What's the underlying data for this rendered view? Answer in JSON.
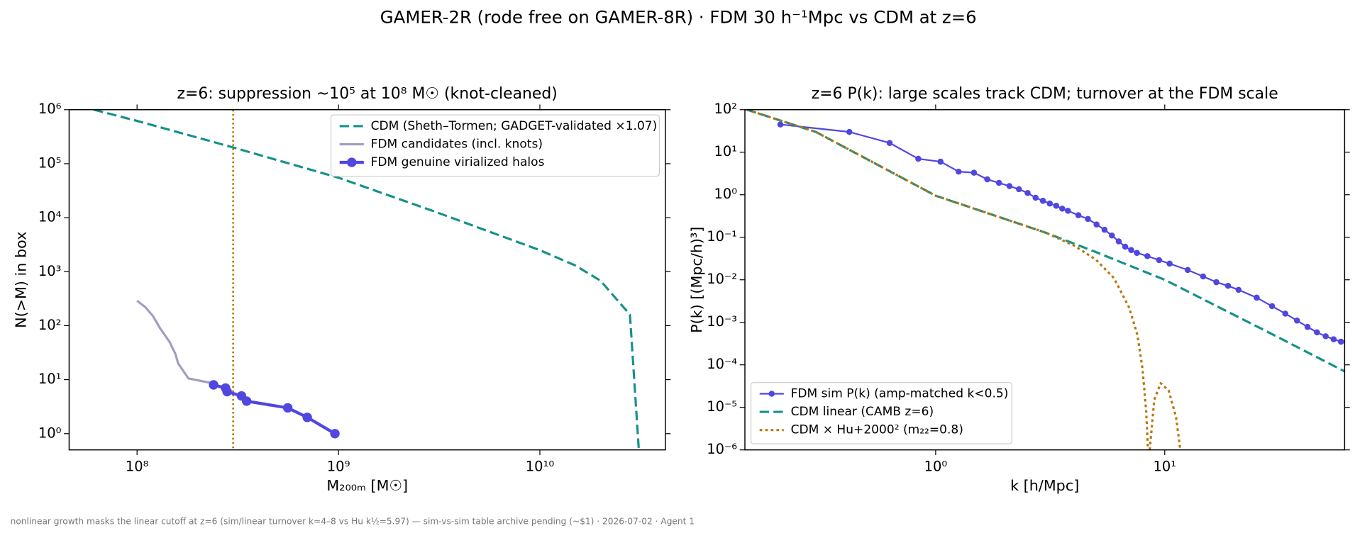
{
  "title": "GAMER-2R (rode free on GAMER-8R) · FDM 30 h⁻¹Mpc vs CDM at z=6",
  "footer": "nonlinear growth masks the linear cutoff at z=6 (sim/linear turnover k≈4–8 vs Hu k½=5.97) — sim-vs-sim table archive pending (~$1) · 2026-07-02 · Agent 1",
  "chart_data": [
    {
      "type": "line",
      "title": "z=6: suppression ~10⁵ at 10⁸ M☉ (knot-cleaned)",
      "xlabel": "M₂₀₀ₘ [M☉]",
      "ylabel": "N(>M) in box",
      "xscale": "log",
      "yscale": "log",
      "xlim": [
        46000000.0,
        42000000000.0
      ],
      "ylim": [
        0.5,
        1000000.0
      ],
      "xticks": [
        {
          "value": 100000000.0,
          "label": "10⁸"
        },
        {
          "value": 1000000000.0,
          "label": "10⁹"
        },
        {
          "value": 10000000000.0,
          "label": "10¹⁰"
        }
      ],
      "yticks": [
        {
          "value": 1,
          "label": "10⁰"
        },
        {
          "value": 10,
          "label": "10¹"
        },
        {
          "value": 100,
          "label": "10²"
        },
        {
          "value": 1000,
          "label": "10³"
        },
        {
          "value": 10000,
          "label": "10⁴"
        },
        {
          "value": 100000,
          "label": "10⁵"
        },
        {
          "value": 1000000,
          "label": "10⁶"
        }
      ],
      "legend": "upper right",
      "vline": {
        "x": 300000000.0,
        "color": "#b8760a"
      },
      "series": [
        {
          "name": "CDM (Sheth–Tormen; GADGET-validated ×1.07)",
          "color": "#15918a",
          "linestyle": "dashed",
          "marker": false,
          "x": [
            61000000.0,
            100000000.0,
            300000000.0,
            1000000000.0,
            3000000000.0,
            10000000000.0,
            15000000000.0,
            20000000000.0,
            28000000000.0,
            31000000000.0
          ],
          "values": [
            1000000,
            620000,
            200000,
            55000,
            13000,
            2500,
            1300,
            680,
            160,
            0.5
          ]
        },
        {
          "name": "FDM candidates (incl. knots)",
          "color": "#a29dc2",
          "linestyle": "solid",
          "marker": false,
          "x": [
            100000000.0,
            110000000.0,
            120000000.0,
            130000000.0,
            145000000.0,
            155000000.0,
            160000000.0,
            180000000.0,
            240000000.0
          ],
          "values": [
            290,
            220,
            150,
            90,
            50,
            30,
            20,
            10.5,
            8.5
          ]
        },
        {
          "name": "FDM genuine virialized halos",
          "color": "#5046e0",
          "linestyle": "solid",
          "marker": true,
          "linewidth": 3.5,
          "markersize": 5.5,
          "x": [
            240000000.0,
            275000000.0,
            280000000.0,
            330000000.0,
            350000000.0,
            560000000.0,
            700000000.0,
            960000000.0
          ],
          "values": [
            8,
            7,
            6,
            5,
            4,
            3,
            2,
            1
          ]
        }
      ]
    },
    {
      "type": "line",
      "title": "z=6 P(k): large scales track CDM; turnover at the FDM scale",
      "xlabel": "k [h/Mpc]",
      "ylabel": "P(k) [(Mpc/h)³]",
      "xscale": "log",
      "yscale": "log",
      "xlim": [
        0.147,
        61
      ],
      "ylim": [
        1e-06,
        100
      ],
      "xticks": [
        {
          "value": 1,
          "label": "10⁰"
        },
        {
          "value": 10,
          "label": "10¹"
        }
      ],
      "yticks": [
        {
          "value": 1e-06,
          "label": "10⁻⁶"
        },
        {
          "value": 1e-05,
          "label": "10⁻⁵"
        },
        {
          "value": 0.0001,
          "label": "10⁻⁴"
        },
        {
          "value": 0.001,
          "label": "10⁻³"
        },
        {
          "value": 0.01,
          "label": "10⁻²"
        },
        {
          "value": 0.1,
          "label": "10⁻¹"
        },
        {
          "value": 1,
          "label": "10⁰"
        },
        {
          "value": 10,
          "label": "10¹"
        },
        {
          "value": 100,
          "label": "10²"
        }
      ],
      "legend": "lower left",
      "series": [
        {
          "name": "FDM sim P(k) (amp-matched k<0.5)",
          "color": "#5046e0",
          "linestyle": "solid",
          "marker": true,
          "linewidth": 1.8,
          "markersize": 3.5,
          "x": [
            0.21,
            0.42,
            0.63,
            0.84,
            1.05,
            1.26,
            1.47,
            1.68,
            1.89,
            2.1,
            2.31,
            2.52,
            2.73,
            2.94,
            3.15,
            3.36,
            3.57,
            3.78,
            4.2,
            4.62,
            5.04,
            5.46,
            5.88,
            6.3,
            6.72,
            7.14,
            7.56,
            8.4,
            9.45,
            10.5,
            12.6,
            14.7,
            16.8,
            18.9,
            21,
            25.2,
            29.4,
            33.6,
            37.8,
            42,
            46.2,
            50.4,
            54.6,
            58.8
          ],
          "values": [
            45,
            30,
            16.5,
            7,
            6,
            3.5,
            3.3,
            2.3,
            1.9,
            1.6,
            1.35,
            1.1,
            0.85,
            0.72,
            0.62,
            0.55,
            0.47,
            0.42,
            0.33,
            0.27,
            0.2,
            0.15,
            0.11,
            0.08,
            0.06,
            0.05,
            0.043,
            0.036,
            0.029,
            0.024,
            0.017,
            0.012,
            0.0088,
            0.0072,
            0.0058,
            0.0038,
            0.0024,
            0.0016,
            0.0011,
            0.00078,
            0.00058,
            0.00047,
            0.0004,
            0.00035
          ]
        },
        {
          "name": "CDM linear (CAMB z=6)",
          "color": "#15918a",
          "linestyle": "dashed",
          "marker": false,
          "x": [
            0.15,
            0.3,
            1,
            3,
            5,
            10,
            30,
            61
          ],
          "values": [
            100,
            30,
            0.95,
            0.13,
            0.045,
            0.01,
            0.0005,
            7e-05
          ]
        },
        {
          "name": "CDM × Hu+2000² (m₂₂=0.8)",
          "color": "#b8760a",
          "linestyle": "dotted",
          "marker": false,
          "x": [
            0.15,
            0.3,
            1,
            3,
            4,
            5,
            6,
            7,
            7.6,
            8,
            8.3,
            8.45,
            8.5,
            8.6,
            9,
            9.6,
            10.4,
            11.2,
            11.7
          ],
          "values": [
            100,
            30,
            0.95,
            0.13,
            0.065,
            0.03,
            0.011,
            0.0022,
            0.0005,
            8e-05,
            8e-06,
            1e-06,
            null,
            1e-06,
            1.5e-05,
            3.7e-05,
            2.5e-05,
            6e-06,
            1e-06
          ]
        }
      ]
    }
  ]
}
